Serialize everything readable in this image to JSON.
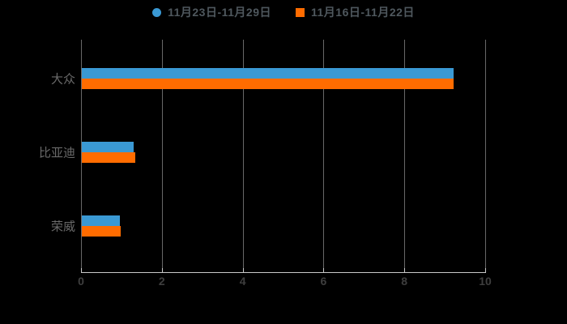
{
  "chart_data": {
    "type": "bar",
    "orientation": "horizontal",
    "title": "",
    "categories": [
      "大众",
      "比亚迪",
      "荣威"
    ],
    "series": [
      {
        "name": "11月23日-11月29日",
        "color": "#3a99d4",
        "marker": "circle",
        "values": [
          9.2,
          1.28,
          0.94
        ]
      },
      {
        "name": "11月16日-11月22日",
        "color": "#ff6c00",
        "marker": "square",
        "values": [
          9.2,
          1.32,
          0.96
        ]
      }
    ],
    "xlabel": "",
    "ylabel": "",
    "xlim": [
      0,
      10
    ],
    "xticks": [
      "0",
      "2",
      "4",
      "6",
      "8",
      "10"
    ],
    "grid": true,
    "legend_position": "top",
    "background_color": "#000000",
    "axis_color": "#c9c9c9",
    "tick_label_color": "#3e3e3e",
    "category_label_color": "#6a6a6a",
    "legend_text_color": "#4f585e"
  }
}
